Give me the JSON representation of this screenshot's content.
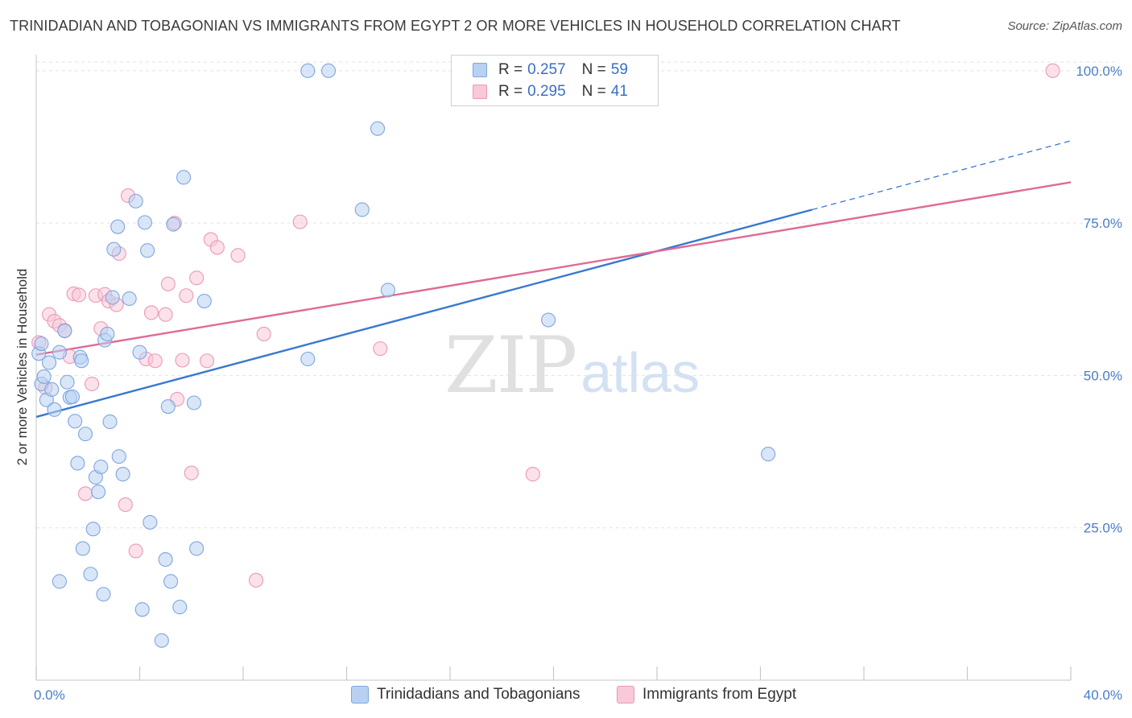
{
  "header": {
    "title": "TRINIDADIAN AND TOBAGONIAN VS IMMIGRANTS FROM EGYPT 2 OR MORE VEHICLES IN HOUSEHOLD CORRELATION CHART",
    "source": "Source: ZipAtlas.com"
  },
  "watermark": {
    "zip": "ZIP",
    "atlas": "atlas"
  },
  "legend": {
    "rows": [
      {
        "r_label": "R =",
        "r_value": "0.257",
        "n_label": "N =",
        "n_value": "59",
        "color": "#b8d1f3",
        "border": "#7fa6dd"
      },
      {
        "r_label": "R =",
        "r_value": "0.295",
        "n_label": "N =",
        "n_value": "41",
        "color": "#f8c9d8",
        "border": "#e99ab5"
      }
    ]
  },
  "bottom_legend": {
    "series_a": "Trinidadians and Tobagonians",
    "series_b": "Immigrants from Egypt"
  },
  "chart_data": {
    "type": "scatter",
    "title": "TRINIDADIAN AND TOBAGONIAN VS IMMIGRANTS FROM EGYPT 2 OR MORE VEHICLES IN HOUSEHOLD CORRELATION CHART",
    "xlabel": "",
    "ylabel": "2 or more Vehicles in Household",
    "xlim": [
      0,
      40
    ],
    "ylim": [
      0,
      105
    ],
    "x_tick_labels": [
      "0.0%",
      "40.0%"
    ],
    "y_ticks": [
      25,
      50,
      75,
      100
    ],
    "y_tick_labels": [
      "25.0%",
      "50.0%",
      "75.0%",
      "100.0%"
    ],
    "grid": true,
    "legend_position": "top-center",
    "colors": {
      "series_a": "#3a78d0",
      "series_b": "#e06a96",
      "series_a_fill": "#b8d1f3",
      "series_b_fill": "#f8c9d8"
    },
    "series": [
      {
        "name": "Trinidadians and Tobagonians",
        "trend": {
          "x": [
            0,
            30
          ],
          "y": [
            43.2,
            77.2
          ],
          "dashed_to": [
            40,
            88.5
          ]
        },
        "points": [
          [
            0.1,
            53.6
          ],
          [
            0.2,
            48.6
          ],
          [
            0.3,
            49.8
          ],
          [
            0.4,
            46.0
          ],
          [
            0.5,
            52.1
          ],
          [
            0.6,
            47.7
          ],
          [
            0.7,
            44.4
          ],
          [
            0.9,
            53.8
          ],
          [
            1.1,
            57.3
          ],
          [
            1.2,
            48.9
          ],
          [
            1.3,
            46.4
          ],
          [
            1.4,
            46.5
          ],
          [
            1.5,
            42.5
          ],
          [
            1.6,
            35.6
          ],
          [
            1.7,
            53.0
          ],
          [
            1.75,
            52.4
          ],
          [
            1.9,
            40.4
          ],
          [
            2.1,
            17.4
          ],
          [
            2.2,
            24.8
          ],
          [
            2.3,
            33.3
          ],
          [
            2.4,
            30.9
          ],
          [
            2.5,
            35.0
          ],
          [
            2.6,
            14.1
          ],
          [
            2.65,
            55.8
          ],
          [
            2.75,
            56.8
          ],
          [
            2.85,
            42.4
          ],
          [
            2.95,
            62.8
          ],
          [
            3.0,
            70.7
          ],
          [
            3.15,
            74.4
          ],
          [
            3.2,
            36.7
          ],
          [
            3.35,
            33.8
          ],
          [
            3.6,
            62.6
          ],
          [
            3.85,
            78.6
          ],
          [
            4.0,
            53.8
          ],
          [
            4.2,
            75.1
          ],
          [
            4.3,
            70.5
          ],
          [
            4.4,
            25.9
          ],
          [
            4.85,
            6.5
          ],
          [
            5.0,
            19.8
          ],
          [
            5.1,
            44.9
          ],
          [
            5.2,
            16.2
          ],
          [
            5.3,
            74.8
          ],
          [
            5.55,
            12.0
          ],
          [
            5.7,
            82.5
          ],
          [
            6.1,
            45.5
          ],
          [
            6.2,
            21.6
          ],
          [
            6.5,
            62.2
          ],
          [
            0.9,
            16.2
          ],
          [
            1.8,
            21.6
          ],
          [
            4.1,
            11.6
          ],
          [
            10.5,
            52.7
          ],
          [
            10.5,
            100.0
          ],
          [
            11.3,
            100.0
          ],
          [
            13.2,
            90.5
          ],
          [
            12.6,
            77.2
          ],
          [
            13.6,
            64.0
          ],
          [
            19.8,
            59.1
          ],
          [
            28.3,
            37.1
          ],
          [
            0.2,
            55.2
          ]
        ]
      },
      {
        "name": "Immigrants from Egypt",
        "trend": {
          "x": [
            0,
            40
          ],
          "y": [
            53.4,
            81.7
          ]
        },
        "points": [
          [
            0.1,
            55.4
          ],
          [
            0.35,
            48.0
          ],
          [
            0.5,
            60.0
          ],
          [
            0.7,
            58.9
          ],
          [
            0.9,
            58.2
          ],
          [
            1.1,
            57.4
          ],
          [
            1.3,
            53.1
          ],
          [
            1.45,
            63.4
          ],
          [
            1.65,
            63.2
          ],
          [
            1.9,
            30.6
          ],
          [
            2.15,
            48.6
          ],
          [
            2.3,
            63.1
          ],
          [
            2.5,
            57.7
          ],
          [
            2.65,
            63.3
          ],
          [
            2.8,
            62.2
          ],
          [
            3.1,
            61.6
          ],
          [
            3.2,
            70.0
          ],
          [
            3.45,
            28.8
          ],
          [
            3.55,
            79.5
          ],
          [
            3.85,
            21.2
          ],
          [
            4.25,
            52.7
          ],
          [
            4.45,
            60.3
          ],
          [
            4.6,
            52.4
          ],
          [
            5.0,
            60.0
          ],
          [
            5.1,
            65.0
          ],
          [
            5.35,
            75.0
          ],
          [
            5.45,
            46.1
          ],
          [
            5.65,
            52.5
          ],
          [
            5.8,
            63.1
          ],
          [
            6.0,
            34.0
          ],
          [
            6.2,
            66.0
          ],
          [
            6.6,
            52.4
          ],
          [
            6.75,
            72.3
          ],
          [
            7.0,
            71.0
          ],
          [
            7.8,
            69.7
          ],
          [
            8.5,
            16.4
          ],
          [
            8.8,
            56.8
          ],
          [
            10.2,
            75.2
          ],
          [
            13.3,
            54.4
          ],
          [
            19.2,
            33.8
          ],
          [
            39.3,
            100.0
          ]
        ]
      }
    ]
  }
}
